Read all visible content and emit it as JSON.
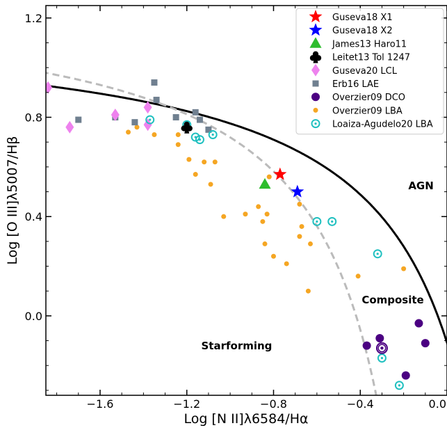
{
  "chart_data": {
    "type": "scatter",
    "title": "",
    "xlabel": "Log [N II]λ6584/Hα",
    "ylabel": "Log [O III]λ5007/Hβ",
    "xlim": [
      -1.85,
      0.0
    ],
    "ylim": [
      -0.32,
      1.25
    ],
    "x_ticks": [
      -1.6,
      -1.2,
      -0.8,
      -0.4,
      0.0
    ],
    "x_tick_labels": [
      "−1.6",
      "−1.2",
      "−0.8",
      "−0.4",
      "0.0"
    ],
    "y_ticks": [
      0.0,
      0.4,
      0.8,
      1.2
    ],
    "y_tick_labels": [
      "0.0",
      "0.4",
      "0.8",
      "1.2"
    ],
    "grid": false,
    "legend_position": "top-right",
    "regions": [
      {
        "label": "AGN",
        "x": -0.12,
        "y": 0.51
      },
      {
        "label": "Composite",
        "x": -0.25,
        "y": 0.05
      },
      {
        "label": "Starforming",
        "x": -0.97,
        "y": -0.135
      }
    ],
    "curves": [
      {
        "name": "kewley",
        "style": "solid",
        "color": "#000000",
        "formula": "0.61/(x-0.47)+1.19"
      },
      {
        "name": "kauffmann",
        "style": "dashed",
        "color": "#bbbbbb",
        "formula": "0.61/(x-0.05)+1.30"
      }
    ],
    "series": [
      {
        "name": "Guseva18 X1",
        "marker": "star",
        "color": "#ff0000",
        "points": [
          [
            -0.77,
            0.57
          ]
        ]
      },
      {
        "name": "Guseva18 X2",
        "marker": "star",
        "color": "#0000ff",
        "points": [
          [
            -0.69,
            0.5
          ]
        ]
      },
      {
        "name": "James13 Haro11",
        "marker": "triangle",
        "color": "#2ebd2e",
        "points": [
          [
            -0.84,
            0.53
          ]
        ]
      },
      {
        "name": "Leitet13 Tol 1247",
        "marker": "club",
        "color": "#000000",
        "points": [
          [
            -1.2,
            0.76
          ]
        ]
      },
      {
        "name": "Guseva20 LCL",
        "marker": "diamond",
        "color": "#ee82ee",
        "points": [
          [
            -1.84,
            0.92
          ],
          [
            -1.74,
            0.76
          ],
          [
            -1.53,
            0.81
          ],
          [
            -1.38,
            0.84
          ],
          [
            -1.38,
            0.77
          ]
        ]
      },
      {
        "name": "Erb16 LAE",
        "marker": "square",
        "color": "#708090",
        "points": [
          [
            -1.7,
            0.79
          ],
          [
            -1.53,
            0.8
          ],
          [
            -1.44,
            0.78
          ],
          [
            -1.35,
            0.94
          ],
          [
            -1.34,
            0.87
          ],
          [
            -1.25,
            0.8
          ],
          [
            -1.16,
            0.82
          ],
          [
            -1.14,
            0.79
          ],
          [
            -1.1,
            0.75
          ]
        ]
      },
      {
        "name": "Overzier09 DCO",
        "marker": "circle",
        "color": "#4b0082",
        "points": [
          [
            -0.37,
            -0.12
          ],
          [
            -0.31,
            -0.09
          ],
          [
            -0.19,
            -0.24
          ],
          [
            -0.13,
            -0.03
          ],
          [
            -0.1,
            -0.11
          ],
          [
            -0.3,
            -0.13
          ]
        ]
      },
      {
        "name": "Overzier09 LBA",
        "marker": "dot",
        "color": "#f5a623",
        "points": [
          [
            -1.47,
            0.74
          ],
          [
            -1.43,
            0.76
          ],
          [
            -1.35,
            0.73
          ],
          [
            -1.24,
            0.73
          ],
          [
            -1.24,
            0.69
          ],
          [
            -1.19,
            0.63
          ],
          [
            -1.16,
            0.57
          ],
          [
            -1.12,
            0.62
          ],
          [
            -1.07,
            0.62
          ],
          [
            -1.09,
            0.53
          ],
          [
            -1.03,
            0.4
          ],
          [
            -0.93,
            0.41
          ],
          [
            -0.87,
            0.44
          ],
          [
            -0.85,
            0.38
          ],
          [
            -0.83,
            0.41
          ],
          [
            -0.84,
            0.29
          ],
          [
            -0.8,
            0.24
          ],
          [
            -0.74,
            0.21
          ],
          [
            -0.68,
            0.45
          ],
          [
            -0.67,
            0.36
          ],
          [
            -0.68,
            0.32
          ],
          [
            -0.63,
            0.29
          ],
          [
            -0.64,
            0.1
          ],
          [
            -0.82,
            0.56
          ],
          [
            -0.41,
            0.16
          ],
          [
            -0.2,
            0.19
          ]
        ]
      },
      {
        "name": "Loaiza-Agudelo20 LBA",
        "marker": "target",
        "color": "#20c0c0",
        "points": [
          [
            -1.37,
            0.79
          ],
          [
            -1.2,
            0.77
          ],
          [
            -1.16,
            0.72
          ],
          [
            -1.14,
            0.71
          ],
          [
            -1.08,
            0.73
          ],
          [
            -0.6,
            0.38
          ],
          [
            -0.53,
            0.38
          ],
          [
            -0.32,
            0.25
          ],
          [
            -0.3,
            -0.17
          ],
          [
            -0.22,
            -0.28
          ]
        ]
      }
    ]
  }
}
